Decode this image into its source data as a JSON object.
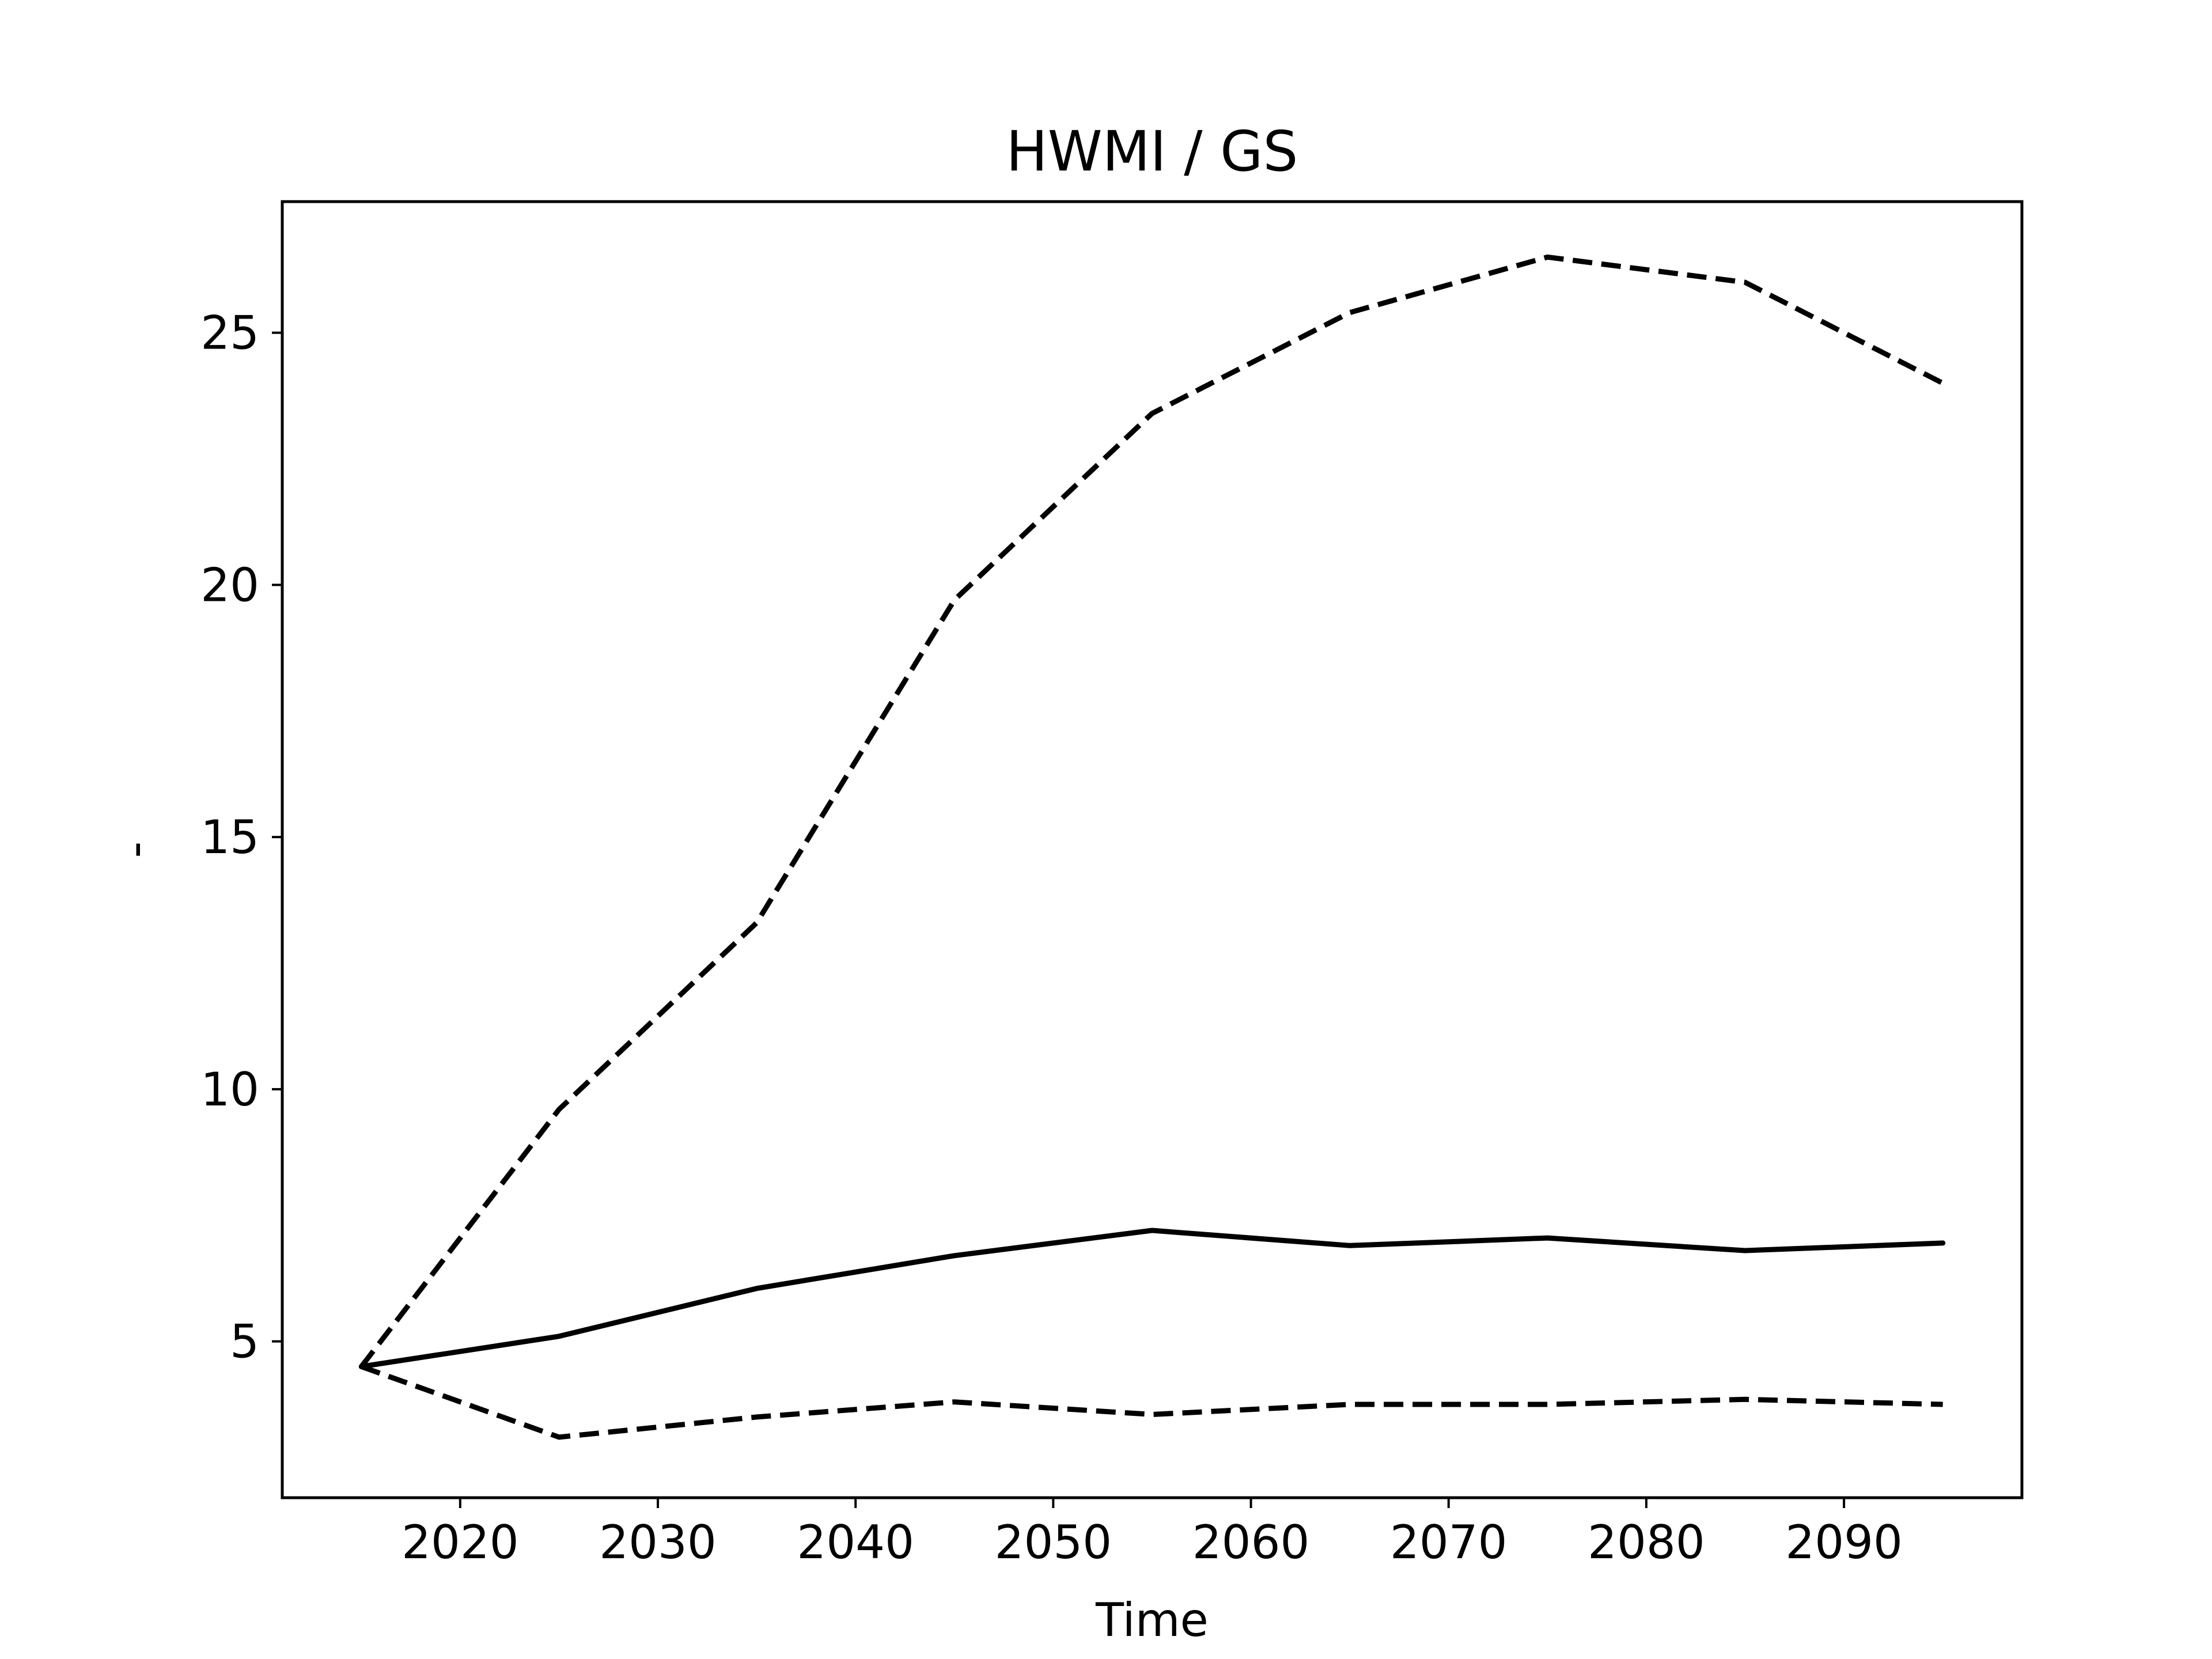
{
  "chart_data": {
    "type": "line",
    "title": "HWMI / GS",
    "xlabel": "Time",
    "ylabel": "-",
    "x": [
      2015,
      2025,
      2035,
      2045,
      2055,
      2065,
      2075,
      2085,
      2095
    ],
    "xlim": [
      2011,
      2099
    ],
    "ylim": [
      1.9,
      27.6
    ],
    "xticks": [
      2020,
      2030,
      2040,
      2050,
      2060,
      2070,
      2080,
      2090
    ],
    "yticks": [
      5,
      10,
      15,
      20,
      25
    ],
    "grid": false,
    "series": [
      {
        "values": [
          4.5,
          5.1,
          6.05,
          6.7,
          7.2,
          6.9,
          7.05,
          6.8,
          6.95
        ],
        "style": "solid",
        "color": "#000000"
      },
      {
        "values": [
          4.5,
          9.6,
          13.3,
          19.7,
          23.4,
          25.4,
          26.5,
          26.0,
          24.0
        ],
        "style": "dashed",
        "color": "#000000"
      },
      {
        "values": [
          4.5,
          3.1,
          3.5,
          3.8,
          3.55,
          3.75,
          3.75,
          3.85,
          3.75
        ],
        "style": "dashed",
        "color": "#000000"
      }
    ]
  }
}
